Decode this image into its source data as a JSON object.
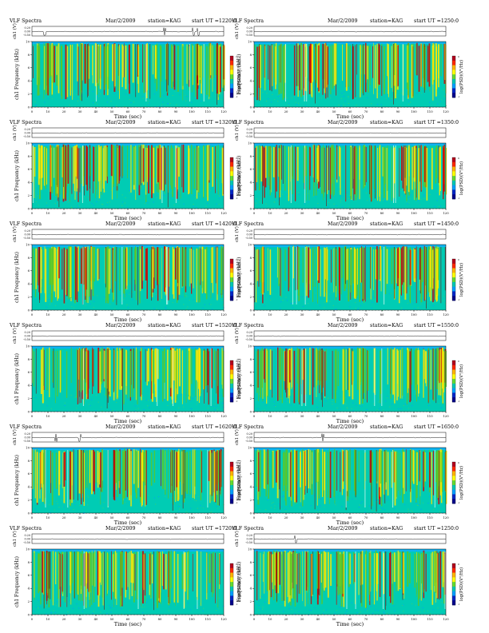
{
  "chart_data": [
    {
      "type": "heatmap",
      "title_left": "VLF Spectra",
      "date": "Mar/2/2009",
      "station": "station=KAG",
      "start_ut": "start  UT  =1220:0",
      "ylabel_top": "ch1 (V)",
      "y_ticks_top": [
        "0.20",
        "0.00",
        "-0.50"
      ],
      "ylabel_main": "ch1 Frequency  (kHz)",
      "xlabel": "Time  (sec)",
      "x_ticks": [
        "0",
        "10",
        "20",
        "30",
        "40",
        "50",
        "60",
        "70",
        "80",
        "90",
        "100",
        "110",
        "120"
      ],
      "y_ticks": [
        "0",
        "2",
        "4",
        "6",
        "8",
        "10"
      ],
      "xlim": [
        0,
        120
      ],
      "ylim": [
        0,
        10
      ],
      "colorbar_label": "log(PSD)(V²/Hz)",
      "colorbar_ticks": [
        "0",
        "-1"
      ],
      "waveform_spikes_sec": [
        8,
        83,
        101,
        104
      ]
    },
    {
      "type": "heatmap",
      "title_left": "VLF Spectra",
      "date": "Mar/2/2009",
      "station": "station=KAG",
      "start_ut": "start  UT  =1250:0",
      "ylabel_top": "ch1 (V)",
      "y_ticks_top": [
        "0.20",
        "0.00",
        "-0.50"
      ],
      "ylabel_main": "Frequency  (kHz)",
      "xlabel": "Time  (sec)",
      "x_ticks": [
        "0",
        "10",
        "20",
        "30",
        "40",
        "50",
        "60",
        "70",
        "80",
        "90",
        "100",
        "110",
        "120"
      ],
      "y_ticks": [
        "0",
        "2",
        "4",
        "6",
        "8",
        "10"
      ],
      "xlim": [
        0,
        120
      ],
      "ylim": [
        0,
        10
      ],
      "colorbar_label": "log(PSD)(V²/Hz)",
      "colorbar_ticks": [
        "0",
        "-1"
      ],
      "waveform_spikes_sec": []
    },
    {
      "type": "heatmap",
      "title_left": "VLF Spectra",
      "date": "Mar/2/2009",
      "station": "station=KAG",
      "start_ut": "start  UT  =1320:0",
      "ylabel_top": "ch1 (V)",
      "y_ticks_top": [
        "0.20",
        "0.00",
        "-0.50"
      ],
      "ylabel_main": "ch1 Frequency  (kHz)",
      "xlabel": "Time  (sec)",
      "x_ticks": [
        "0",
        "10",
        "20",
        "30",
        "40",
        "50",
        "60",
        "70",
        "80",
        "90",
        "100",
        "110",
        "120"
      ],
      "y_ticks": [
        "0",
        "2",
        "4",
        "6",
        "8",
        "10"
      ],
      "xlim": [
        0,
        120
      ],
      "ylim": [
        0,
        10
      ],
      "colorbar_label": "log(PSD)(V²/Hz)",
      "colorbar_ticks": [
        "0",
        "-1"
      ],
      "waveform_spikes_sec": []
    },
    {
      "type": "heatmap",
      "title_left": "VLF Spectra",
      "date": "Mar/2/2009",
      "station": "station=KAG",
      "start_ut": "start  UT  =1350:0",
      "ylabel_top": "ch1 (V)",
      "y_ticks_top": [
        "0.20",
        "0.00",
        "-0.50"
      ],
      "ylabel_main": "Frequency  (kHz)",
      "xlabel": "Time  (sec)",
      "x_ticks": [
        "0",
        "10",
        "20",
        "30",
        "40",
        "50",
        "60",
        "70",
        "80",
        "90",
        "100",
        "110",
        "120"
      ],
      "y_ticks": [
        "0",
        "2",
        "4",
        "6",
        "8",
        "10"
      ],
      "xlim": [
        0,
        120
      ],
      "ylim": [
        0,
        10
      ],
      "colorbar_label": "log(PSD)(V²/Hz)",
      "colorbar_ticks": [
        "0",
        "-1"
      ],
      "waveform_spikes_sec": []
    },
    {
      "type": "heatmap",
      "title_left": "VLF Spectra",
      "date": "Mar/2/2009",
      "station": "station=KAG",
      "start_ut": "start  UT  =1420:0",
      "ylabel_top": "ch1 (V)",
      "y_ticks_top": [
        "0.20",
        "0.00",
        "-0.50"
      ],
      "ylabel_main": "ch1 Frequency  (kHz)",
      "xlabel": "Time  (sec)",
      "x_ticks": [
        "0",
        "10",
        "20",
        "30",
        "40",
        "50",
        "60",
        "70",
        "80",
        "90",
        "100",
        "110",
        "120"
      ],
      "y_ticks": [
        "0",
        "2",
        "4",
        "6",
        "8",
        "10"
      ],
      "xlim": [
        0,
        120
      ],
      "ylim": [
        0,
        10
      ],
      "colorbar_label": "log(PSD)(V²/Hz)",
      "colorbar_ticks": [
        "0",
        "-1"
      ],
      "waveform_spikes_sec": []
    },
    {
      "type": "heatmap",
      "title_left": "VLF Spectra",
      "date": "Mar/2/2009",
      "station": "station=KAG",
      "start_ut": "start  UT  =1450:0",
      "ylabel_top": "ch1 (V)",
      "y_ticks_top": [
        "0.20",
        "0.00",
        "-0.50"
      ],
      "ylabel_main": "Frequency  (kHz)",
      "xlabel": "Time  (sec)",
      "x_ticks": [
        "0",
        "10",
        "20",
        "30",
        "40",
        "50",
        "60",
        "70",
        "80",
        "90",
        "100",
        "110",
        "120"
      ],
      "y_ticks": [
        "0",
        "2",
        "4",
        "6",
        "8",
        "10"
      ],
      "xlim": [
        0,
        120
      ],
      "ylim": [
        0,
        10
      ],
      "colorbar_label": "log(PSD)(V²/Hz)",
      "colorbar_ticks": [
        "0",
        "-1"
      ],
      "waveform_spikes_sec": []
    },
    {
      "type": "heatmap",
      "title_left": "VLF Spectra",
      "date": "Mar/2/2009",
      "station": "station=KAG",
      "start_ut": "start  UT  =1520:0",
      "ylabel_top": "ch1 (V)",
      "y_ticks_top": [
        "0.20",
        "0.00",
        "-0.50"
      ],
      "ylabel_main": "ch1 Frequency  (kHz)",
      "xlabel": "Time  (sec)",
      "x_ticks": [
        "0",
        "10",
        "20",
        "30",
        "40",
        "50",
        "60",
        "70",
        "80",
        "90",
        "100",
        "110",
        "120"
      ],
      "y_ticks": [
        "0",
        "2",
        "4",
        "6",
        "8",
        "10"
      ],
      "xlim": [
        0,
        120
      ],
      "ylim": [
        0,
        10
      ],
      "colorbar_label": "log(PSD)(V²/Hz)",
      "colorbar_ticks": [
        "0",
        "-1"
      ],
      "waveform_spikes_sec": []
    },
    {
      "type": "heatmap",
      "title_left": "VLF Spectra",
      "date": "Mar/2/2009",
      "station": "station=KAG",
      "start_ut": "start  UT  =1550:0",
      "ylabel_top": "ch1 (V)",
      "y_ticks_top": [
        "0.20",
        "0.00",
        "-0.50"
      ],
      "ylabel_main": "Frequency  (kHz)",
      "xlabel": "Time  (sec)",
      "x_ticks": [
        "0",
        "10",
        "20",
        "30",
        "40",
        "50",
        "60",
        "70",
        "80",
        "90",
        "100",
        "110",
        "120"
      ],
      "y_ticks": [
        "0",
        "2",
        "4",
        "6",
        "8",
        "10"
      ],
      "xlim": [
        0,
        120
      ],
      "ylim": [
        0,
        10
      ],
      "colorbar_label": "log(PSD)(V²/Hz)",
      "colorbar_ticks": [
        "0",
        "-1"
      ],
      "waveform_spikes_sec": []
    },
    {
      "type": "heatmap",
      "title_left": "VLF Spectra",
      "date": "Mar/2/2009",
      "station": "station=KAG",
      "start_ut": "start  UT  =1620:0",
      "ylabel_top": "ch1 (V)",
      "y_ticks_top": [
        "0.20",
        "0.00",
        "-0.50"
      ],
      "ylabel_main": "ch1 Frequency  (kHz)",
      "xlabel": "Time  (sec)",
      "x_ticks": [
        "0",
        "10",
        "20",
        "30",
        "40",
        "50",
        "60",
        "70",
        "80",
        "90",
        "100",
        "110",
        "120"
      ],
      "y_ticks": [
        "0",
        "2",
        "4",
        "6",
        "8",
        "10"
      ],
      "xlim": [
        0,
        120
      ],
      "ylim": [
        0,
        10
      ],
      "colorbar_label": "log(PSD)(V²/Hz)",
      "colorbar_ticks": [
        "0",
        "-1"
      ],
      "waveform_spikes_sec": [
        15,
        30
      ]
    },
    {
      "type": "heatmap",
      "title_left": "VLF Spectra",
      "date": "Mar/2/2009",
      "station": "station=KAG",
      "start_ut": "start  UT  =1650:0",
      "ylabel_top": "ch1 (V)",
      "y_ticks_top": [
        "0.20",
        "0.00",
        "-0.50"
      ],
      "ylabel_main": "Frequency  (kHz)",
      "xlabel": "Time  (sec)",
      "x_ticks": [
        "0",
        "10",
        "20",
        "30",
        "40",
        "50",
        "60",
        "70",
        "80",
        "90",
        "100",
        "110",
        "120"
      ],
      "y_ticks": [
        "0",
        "2",
        "4",
        "6",
        "8",
        "10"
      ],
      "xlim": [
        0,
        120
      ],
      "ylim": [
        0,
        10
      ],
      "colorbar_label": "log(PSD)(V²/Hz)",
      "colorbar_ticks": [
        "0",
        "-1"
      ],
      "waveform_spikes_sec": [
        43
      ]
    },
    {
      "type": "heatmap",
      "title_left": "VLF Spectra",
      "date": "Mar/2/2009",
      "station": "station=KAG",
      "start_ut": "start  UT  =1720:0",
      "ylabel_top": "ch1 (V)",
      "y_ticks_top": [
        "0.20",
        "0.00",
        "-0.50"
      ],
      "ylabel_main": "ch1 Frequency  (kHz)",
      "xlabel": "Time  (sec)",
      "x_ticks": [
        "0",
        "10",
        "20",
        "30",
        "40",
        "50",
        "60",
        "70",
        "80",
        "90",
        "100",
        "110",
        "120"
      ],
      "y_ticks": [
        "0",
        "2",
        "4",
        "6",
        "8",
        "10"
      ],
      "xlim": [
        0,
        120
      ],
      "ylim": [
        0,
        10
      ],
      "colorbar_label": "log(PSD)(V²/Hz)",
      "colorbar_ticks": [
        "0",
        "-1"
      ],
      "waveform_spikes_sec": []
    },
    {
      "type": "heatmap",
      "title_left": "VLF Spectra",
      "date": "Mar/2/2009",
      "station": "station=KAG",
      "start_ut": "start  UT  =1250:0",
      "ylabel_top": "ch1 (V)",
      "y_ticks_top": [
        "0.20",
        "0.00",
        "-0.50"
      ],
      "ylabel_main": "Frequency  (kHz)",
      "xlabel": "Time  (sec)",
      "x_ticks": [
        "0",
        "10",
        "20",
        "30",
        "40",
        "50",
        "60",
        "70",
        "80",
        "90",
        "100",
        "110",
        "120"
      ],
      "y_ticks": [
        "0",
        "2",
        "4",
        "6",
        "8",
        "10"
      ],
      "xlim": [
        0,
        120
      ],
      "ylim": [
        0,
        10
      ],
      "colorbar_label": "log(PSD)(V²/Hz)",
      "colorbar_ticks": [
        "0",
        "-1"
      ],
      "waveform_spikes_sec": [
        26
      ]
    }
  ],
  "colors": {
    "spectrogram_background": "#00ccb4",
    "top_band": "#0fb4f0",
    "hot_red": "#d20000",
    "warm_yellow": "#ffe600",
    "mid_green": "#5ac828",
    "colorbar": [
      "#b4001e",
      "#ff2800",
      "#ffb400",
      "#ffff00",
      "#64dc32",
      "#00c8b4",
      "#00a0ff",
      "#0028c8",
      "#00008c"
    ]
  }
}
